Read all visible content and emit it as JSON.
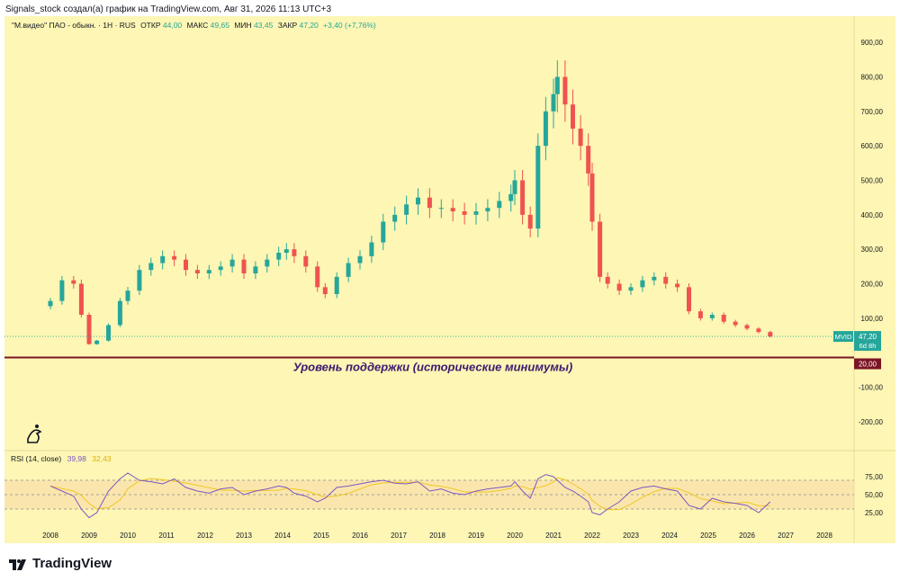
{
  "header": {
    "caption": "Signals_stock создал(а) график на TradingView.com, Авг 31, 2026 11:13 UTC+3",
    "symbol_name": "\"М.видео\" ПАО - обыкн. · 1Н · RUS",
    "open_label": "ОТКР",
    "open_value": "44,00",
    "high_label": "МАКС",
    "high_value": "49,65",
    "low_label": "МИН",
    "low_value": "43,45",
    "close_label": "ЗАКР",
    "close_value": "47,20",
    "change": "+3,40 (+7,76%)"
  },
  "price_tag": {
    "ticker": "MVID",
    "value": "47,20",
    "countdown": "6d 8h"
  },
  "support": {
    "label": "Уровень поддержки (исторические минимумы)",
    "value": "20,00"
  },
  "rsi": {
    "title": "RSI (14, close)",
    "value": "39,98",
    "ma_value": "32,43"
  },
  "footer": {
    "brand": "TradingView"
  },
  "colors": {
    "background": "#fdf6b4",
    "candle_up": "#26a69a",
    "candle_down": "#ef5350",
    "support_line": "#7b1424",
    "support_text": "#3b1a70",
    "rsi_line": "#7e57c2",
    "rsi_ma": "#f3c623",
    "price_tag": "#26a69a"
  },
  "chart_data": {
    "type": "candlestick",
    "x": [
      2008.0,
      2008.3,
      2008.6,
      2008.8,
      2009.0,
      2009.2,
      2009.5,
      2009.8,
      2010.0,
      2010.3,
      2010.6,
      2010.9,
      2011.2,
      2011.5,
      2011.8,
      2012.1,
      2012.4,
      2012.7,
      2013.0,
      2013.3,
      2013.6,
      2013.9,
      2014.1,
      2014.3,
      2014.6,
      2014.9,
      2015.1,
      2015.4,
      2015.7,
      2016.0,
      2016.3,
      2016.6,
      2016.9,
      2017.2,
      2017.5,
      2017.8,
      2018.1,
      2018.4,
      2018.7,
      2019.0,
      2019.3,
      2019.6,
      2019.9,
      2020.0,
      2020.2,
      2020.4,
      2020.6,
      2020.8,
      2021.0,
      2021.1,
      2021.3,
      2021.5,
      2021.7,
      2021.9,
      2022.0,
      2022.2,
      2022.4,
      2022.7,
      2023.0,
      2023.3,
      2023.6,
      2023.9,
      2024.2,
      2024.5,
      2024.8,
      2025.1,
      2025.4,
      2025.7,
      2026.0,
      2026.3,
      2026.6
    ],
    "close": [
      150,
      210,
      200,
      110,
      25,
      35,
      80,
      150,
      180,
      240,
      260,
      280,
      270,
      240,
      230,
      240,
      250,
      270,
      230,
      250,
      270,
      290,
      300,
      280,
      250,
      190,
      170,
      220,
      260,
      280,
      320,
      380,
      400,
      430,
      450,
      420,
      420,
      410,
      400,
      410,
      420,
      440,
      460,
      500,
      400,
      360,
      600,
      700,
      750,
      800,
      720,
      650,
      600,
      520,
      380,
      220,
      200,
      180,
      190,
      210,
      220,
      200,
      190,
      120,
      100,
      110,
      90,
      80,
      70,
      60,
      47.2
    ],
    "series": [
      {
        "name": "RSI (14, close)",
        "values": [
          62,
          55,
          48,
          30,
          18,
          25,
          55,
          72,
          80,
          70,
          68,
          65,
          72,
          60,
          55,
          52,
          58,
          60,
          50,
          55,
          58,
          62,
          60,
          52,
          48,
          40,
          45,
          60,
          62,
          65,
          68,
          70,
          66,
          65,
          68,
          55,
          58,
          52,
          50,
          55,
          58,
          60,
          62,
          68,
          55,
          45,
          72,
          78,
          75,
          70,
          60,
          55,
          48,
          40,
          25,
          22,
          30,
          40,
          55,
          60,
          62,
          58,
          55,
          35,
          30,
          45,
          40,
          38,
          35,
          25,
          39.98
        ]
      }
    ],
    "y_ticks": [
      "900,00",
      "800,00",
      "700,00",
      "600,00",
      "500,00",
      "400,00",
      "300,00",
      "200,00",
      "100,00",
      "-100,00",
      "-200,00"
    ],
    "rsi_ticks": [
      "75,00",
      "50,00",
      "25,00"
    ],
    "x_ticks": [
      "2008",
      "2009",
      "2010",
      "2011",
      "2012",
      "2013",
      "2014",
      "2015",
      "2016",
      "2017",
      "2018",
      "2019",
      "2020",
      "2021",
      "2022",
      "2023",
      "2024",
      "2025",
      "2026",
      "2027",
      "2028"
    ],
    "ylim": [
      -250,
      950
    ],
    "rsi_range": [
      10,
      90
    ],
    "rsi_band": [
      30,
      70
    ]
  }
}
